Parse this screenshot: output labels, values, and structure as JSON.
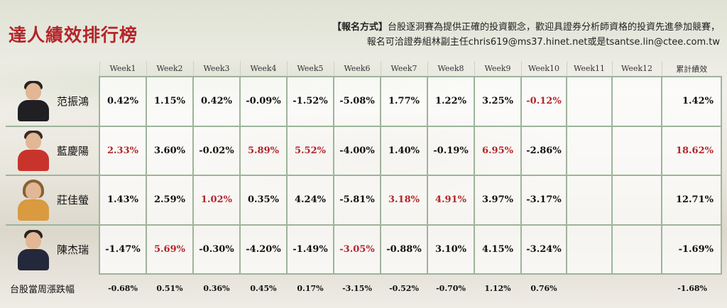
{
  "title": "達人績效排行榜",
  "notice": {
    "label": "【報名方式】",
    "line1": "台股逐洞賽為提供正確的投資觀念，歡迎具證券分析師資格的投資先進參加競賽，",
    "line2": "報名可洽證券組林副主任chris619@ms37.hinet.net或是tsantse.lin@ctee.com.tw"
  },
  "headers": [
    "Week1",
    "Week2",
    "Week3",
    "Week4",
    "Week5",
    "Week6",
    "Week7",
    "Week8",
    "Week9",
    "Week10",
    "Week11",
    "Week12",
    "累計績效"
  ],
  "colors": {
    "red": "#b3262a",
    "title": "#b3262a",
    "grid": "#9eb49a"
  },
  "players": [
    {
      "name": "范振鴻",
      "weeks": [
        "0.42%",
        "1.15%",
        "0.42%",
        "-0.09%",
        "-1.52%",
        "-5.08%",
        "1.77%",
        "1.22%",
        "3.25%",
        "-0.12%",
        "",
        ""
      ],
      "red": [
        9
      ],
      "total": "1.42%",
      "total_red": false
    },
    {
      "name": "藍慶陽",
      "weeks": [
        "2.33%",
        "3.60%",
        "-0.02%",
        "5.89%",
        "5.52%",
        "-4.00%",
        "1.40%",
        "-0.19%",
        "6.95%",
        "-2.86%",
        "",
        ""
      ],
      "red": [
        0,
        3,
        4,
        8
      ],
      "total": "18.62%",
      "total_red": true
    },
    {
      "name": "莊佳螢",
      "weeks": [
        "1.43%",
        "2.59%",
        "1.02%",
        "0.35%",
        "4.24%",
        "-5.81%",
        "3.18%",
        "4.91%",
        "3.97%",
        "-3.17%",
        "",
        ""
      ],
      "red": [
        2,
        6,
        7
      ],
      "total": "12.71%",
      "total_red": false
    },
    {
      "name": "陳杰瑞",
      "weeks": [
        "-1.47%",
        "5.69%",
        "-0.30%",
        "-4.20%",
        "-1.49%",
        "-3.05%",
        "-0.88%",
        "3.10%",
        "4.15%",
        "-3.24%",
        "",
        ""
      ],
      "red": [
        1,
        5
      ],
      "total": "-1.69%",
      "total_red": false
    }
  ],
  "market": {
    "label": "台股當周漲跌幅",
    "weeks": [
      "-0.68%",
      "0.51%",
      "0.36%",
      "0.45%",
      "0.17%",
      "-3.15%",
      "-0.52%",
      "-0.70%",
      "1.12%",
      "0.76%",
      "",
      ""
    ],
    "total": "-1.68%"
  }
}
